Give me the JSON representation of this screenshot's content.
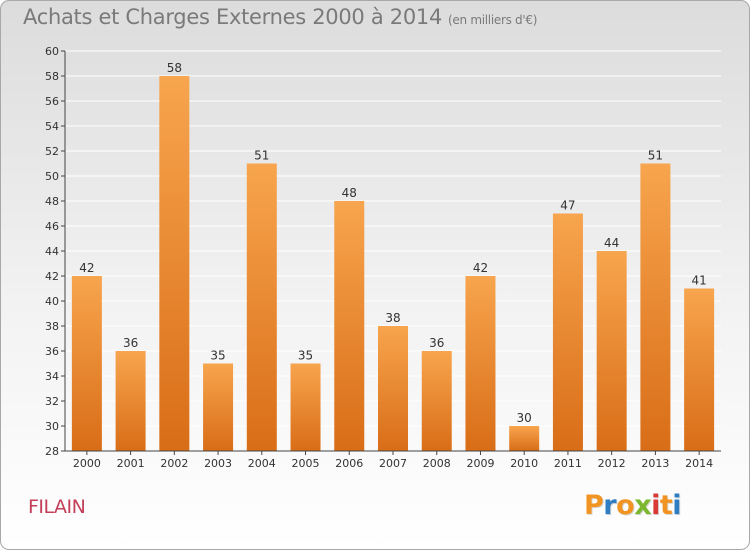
{
  "header": {
    "title": "Achats et Charges Externes 2000 à 2014",
    "unit": "(en milliers d'€)"
  },
  "footer": {
    "commune": "FILAIN",
    "brand": "Proxiti"
  },
  "colors": {
    "bar_light": "#f7a54e",
    "bar_dark": "#d96d17",
    "axis": "#444444",
    "grid": "#ffffff",
    "commune": "#c4405a",
    "brand_letters": [
      "#f29422",
      "#2f7ec3",
      "#f29422",
      "#7cb82f",
      "#d93a35",
      "#f29422",
      "#2f7ec3"
    ]
  },
  "chart_data": {
    "type": "bar",
    "title": "Achats et Charges Externes 2000 à 2014",
    "subtitle": "(en milliers d'€)",
    "xlabel": "",
    "ylabel": "",
    "categories": [
      "2000",
      "2001",
      "2002",
      "2003",
      "2004",
      "2005",
      "2006",
      "2007",
      "2008",
      "2009",
      "2010",
      "2011",
      "2012",
      "2013",
      "2014"
    ],
    "values": [
      42,
      36,
      58,
      35,
      51,
      35,
      48,
      38,
      36,
      42,
      30,
      47,
      44,
      51,
      41
    ],
    "ylim": [
      28,
      60
    ],
    "yticks": [
      28,
      30,
      32,
      34,
      36,
      38,
      40,
      42,
      44,
      46,
      48,
      50,
      52,
      54,
      56,
      58,
      60
    ],
    "grid": true,
    "legend": "none"
  }
}
